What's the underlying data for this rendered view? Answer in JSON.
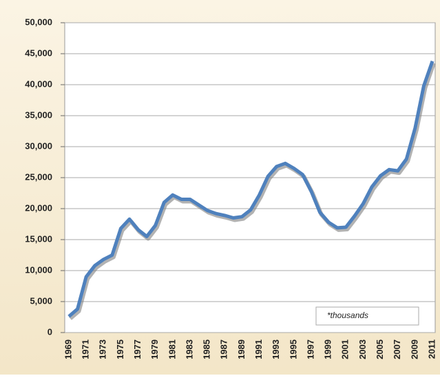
{
  "chart_data": {
    "type": "line",
    "categories": [
      "1969",
      null,
      "1971",
      null,
      "1973",
      null,
      "1975",
      null,
      "1977",
      null,
      "1979",
      null,
      "1981",
      null,
      "1983",
      null,
      "1985",
      null,
      "1987",
      null,
      "1989",
      null,
      "1991",
      null,
      "1993",
      null,
      "1995",
      null,
      "1997",
      null,
      "1999",
      null,
      "2001",
      null,
      "2003",
      null,
      "2005",
      null,
      "2007",
      null,
      "2009",
      null,
      "2011"
    ],
    "series": [
      {
        "color": "#4f81bd",
        "values": [
          2600,
          3800,
          9000,
          10800,
          11800,
          12500,
          16800,
          18300,
          16600,
          15500,
          17300,
          21000,
          22200,
          21500,
          21500,
          20600,
          19700,
          19200,
          18900,
          18500,
          18700,
          19800,
          22200,
          25200,
          26800,
          27300,
          26500,
          25500,
          22800,
          19400,
          17800,
          16900,
          17000,
          18800,
          20800,
          23500,
          25300,
          26300,
          26100,
          28000,
          33000,
          39800,
          43800
        ]
      }
    ],
    "ylim": [
      0,
      50000
    ],
    "yticks": [
      0,
      {
        "value": 5000,
        "label": "5,000"
      },
      {
        "value": 10000,
        "label": "10,000"
      },
      {
        "value": 15000,
        "label": "15,000"
      },
      {
        "value": 20000,
        "label": "20,000"
      },
      {
        "value": 25000,
        "label": "25,000"
      },
      {
        "value": 30000,
        "label": "30,000"
      },
      {
        "value": 35000,
        "label": "35,000"
      },
      {
        "value": 40000,
        "label": "40,000"
      },
      {
        "value": 45000,
        "label": "45,000"
      },
      {
        "value": 50000,
        "label": "50,000"
      }
    ],
    "grid": true,
    "annotation": "*thousands"
  }
}
